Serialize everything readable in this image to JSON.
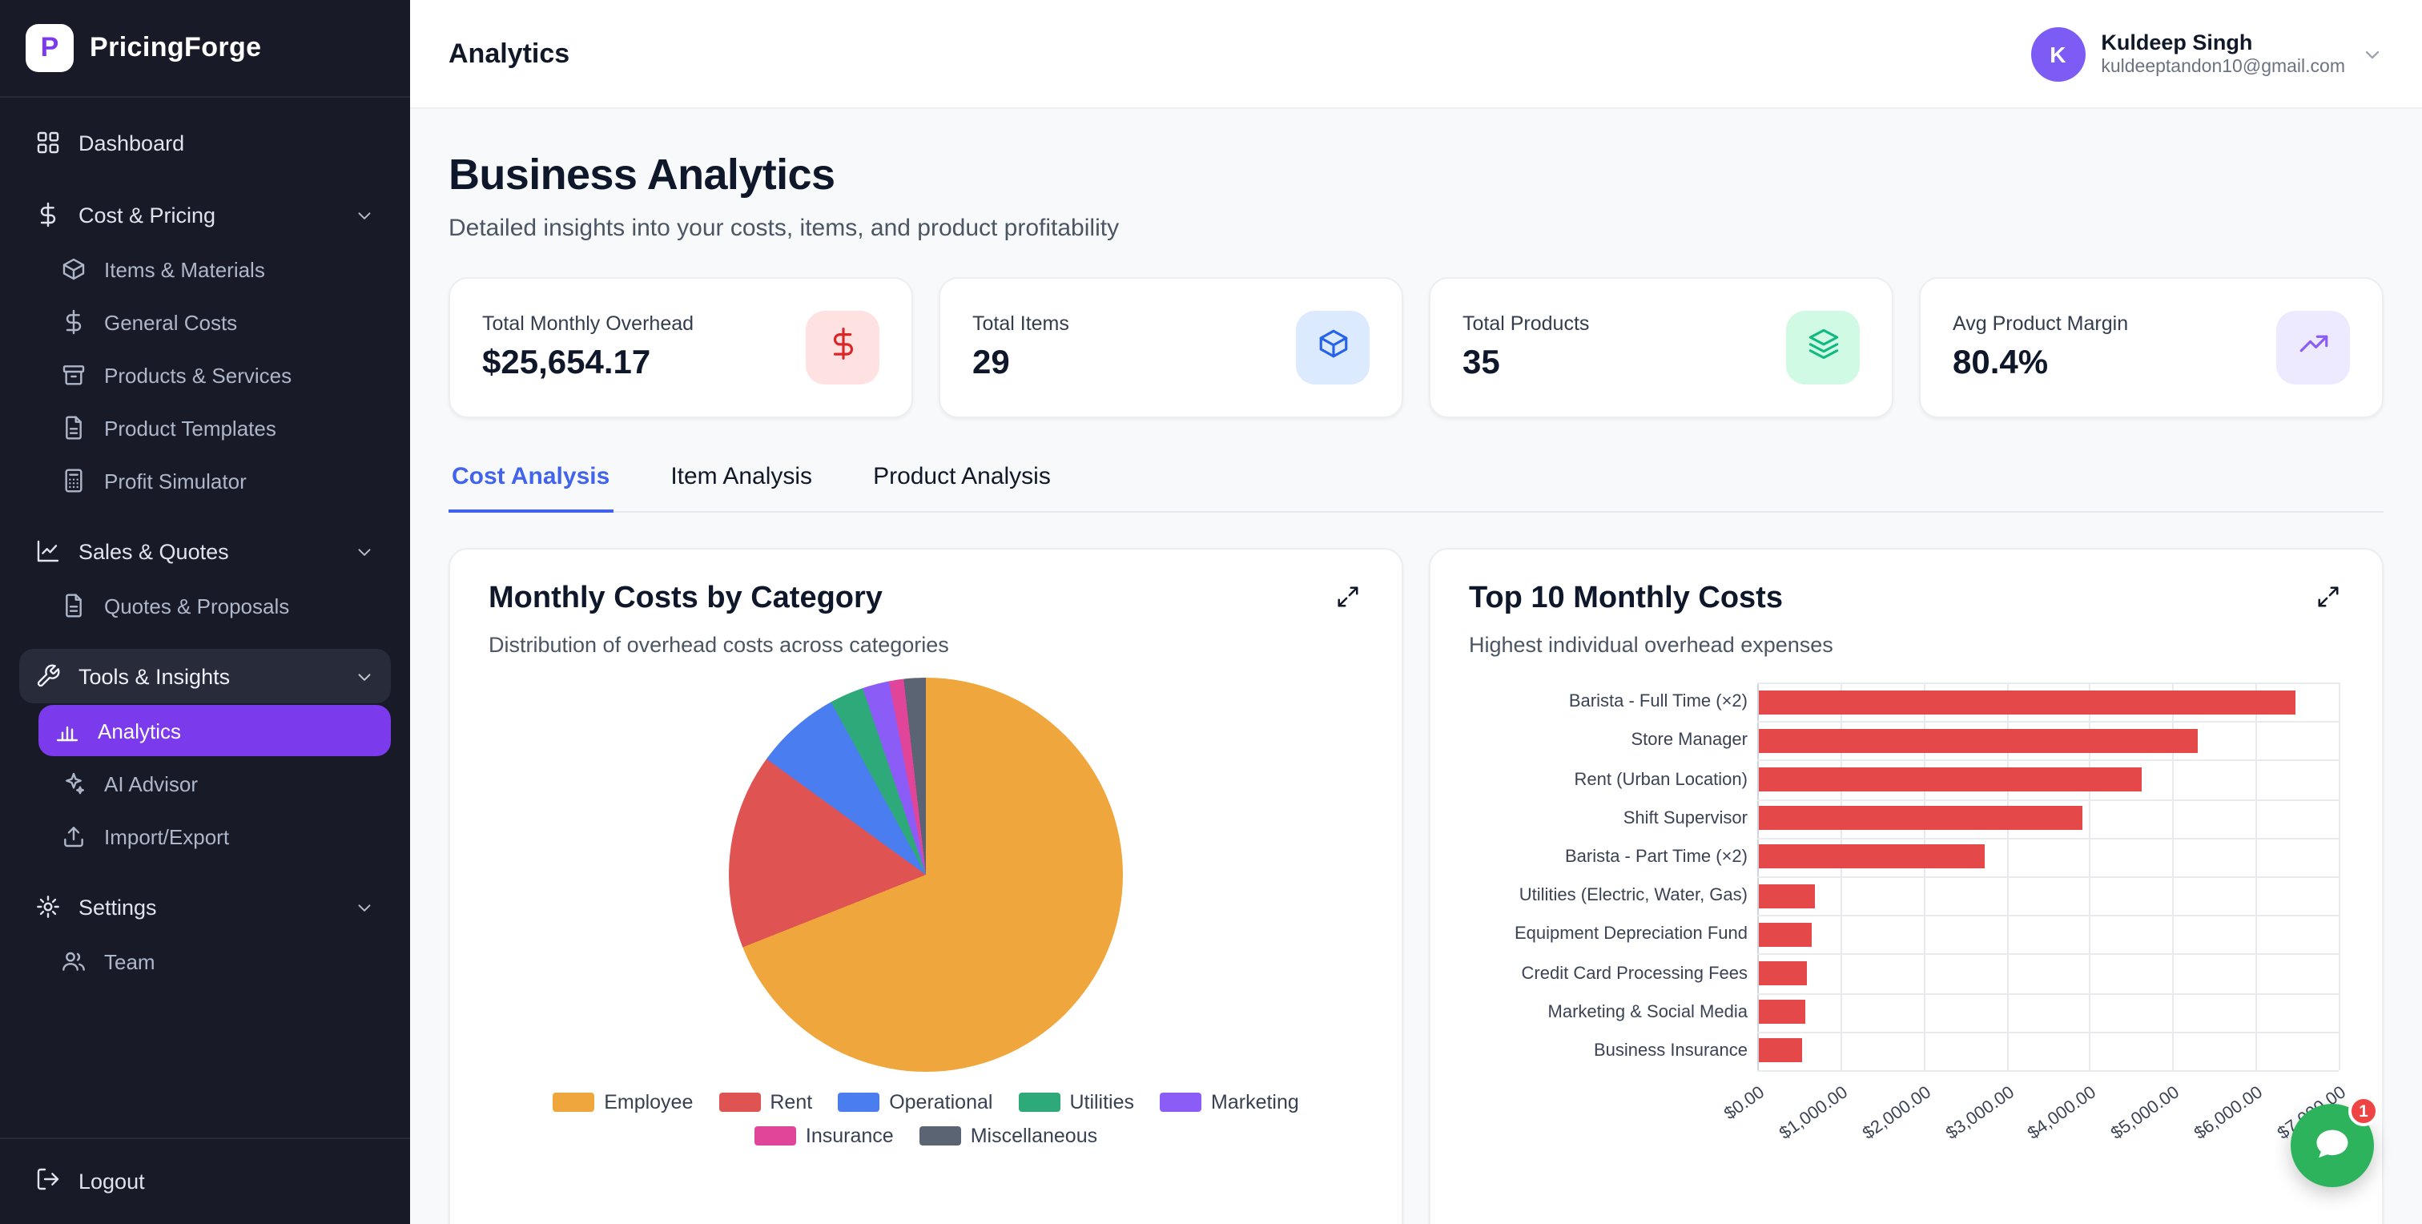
{
  "app": {
    "name": "PricingForge",
    "logo_letter": "P"
  },
  "sidebar": {
    "items": [
      {
        "label": "Dashboard",
        "icon": "grid-icon",
        "level": 0
      },
      {
        "label": "Cost & Pricing",
        "icon": "dollar-icon",
        "level": 0,
        "chevron": true
      },
      {
        "label": "Items & Materials",
        "icon": "package-icon",
        "level": 1
      },
      {
        "label": "General Costs",
        "icon": "dollar-icon",
        "level": 1
      },
      {
        "label": "Products & Services",
        "icon": "archive-icon",
        "level": 1
      },
      {
        "label": "Product Templates",
        "icon": "file-icon",
        "level": 1
      },
      {
        "label": "Profit Simulator",
        "icon": "calculator-icon",
        "level": 1
      },
      {
        "label": "Sales & Quotes",
        "icon": "line-chart-icon",
        "level": 0,
        "chevron": true
      },
      {
        "label": "Quotes & Proposals",
        "icon": "file-icon",
        "level": 1
      },
      {
        "label": "Tools & Insights",
        "icon": "wrench-icon",
        "level": 0,
        "chevron": true,
        "highlight": true
      },
      {
        "label": "Analytics",
        "icon": "bar-chart-icon",
        "level": 1,
        "active": true
      },
      {
        "label": "AI Advisor",
        "icon": "sparkles-icon",
        "level": 1
      },
      {
        "label": "Import/Export",
        "icon": "upload-icon",
        "level": 1
      },
      {
        "label": "Settings",
        "icon": "gear-icon",
        "level": 0,
        "chevron": true
      },
      {
        "label": "Team",
        "icon": "users-icon",
        "level": 1
      }
    ],
    "logout_label": "Logout"
  },
  "header": {
    "title": "Analytics",
    "user": {
      "initial": "K",
      "name": "Kuldeep Singh",
      "email": "kuldeeptandon10@gmail.com"
    }
  },
  "main": {
    "title": "Business Analytics",
    "subtitle": "Detailed insights into your costs, items, and product profitability",
    "stats": [
      {
        "label": "Total Monthly Overhead",
        "value": "$25,654.17",
        "icon": "dollar-icon",
        "icon_color": "#dc2626",
        "icon_bg": "#fee2e2"
      },
      {
        "label": "Total Items",
        "value": "29",
        "icon": "package-icon",
        "icon_color": "#2563eb",
        "icon_bg": "#dbeafe"
      },
      {
        "label": "Total Products",
        "value": "35",
        "icon": "layers-icon",
        "icon_color": "#10b981",
        "icon_bg": "#d1fae5"
      },
      {
        "label": "Avg Product Margin",
        "value": "80.4%",
        "icon": "trending-up-icon",
        "icon_color": "#8b5cf6",
        "icon_bg": "#ede9fe"
      }
    ],
    "tabs": [
      {
        "label": "Cost Analysis",
        "active": true
      },
      {
        "label": "Item Analysis"
      },
      {
        "label": "Product Analysis"
      }
    ]
  },
  "chat": {
    "badge": "1"
  },
  "chart_data": [
    {
      "type": "pie",
      "title": "Monthly Costs by Category",
      "subtitle": "Distribution of overhead costs across categories",
      "labels": [
        "Employee",
        "Rent",
        "Operational",
        "Utilities",
        "Marketing",
        "Insurance",
        "Miscellaneous"
      ],
      "values_percent": [
        69,
        16,
        7,
        2.8,
        2.2,
        1.2,
        1.8
      ],
      "colors": [
        "#efa63c",
        "#df5353",
        "#4a7df0",
        "#2ea97a",
        "#8b5cf6",
        "#e0459a",
        "#5b6472"
      ],
      "legend_position": "bottom"
    },
    {
      "type": "bar",
      "orientation": "horizontal",
      "title": "Top 10 Monthly Costs",
      "subtitle": "Highest individual overhead expenses",
      "categories": [
        "Barista - Full Time (×2)",
        "Store Manager",
        "Rent (Urban Location)",
        "Shift Supervisor",
        "Barista - Part Time (×2)",
        "Utilities (Electric, Water, Gas)",
        "Equipment Depreciation Fund",
        "Credit Card Processing Fees",
        "Marketing & Social Media",
        "Business Insurance"
      ],
      "values": [
        6450,
        5280,
        4600,
        3900,
        2720,
        680,
        630,
        580,
        550,
        520
      ],
      "bar_color": "#e54848",
      "x_ticks": [
        "$0.00",
        "$1,000.00",
        "$2,000.00",
        "$3,000.00",
        "$4,000.00",
        "$5,000.00",
        "$6,000.00",
        "$7,000.00"
      ],
      "xlim": [
        0,
        7000
      ],
      "grid": true
    }
  ]
}
